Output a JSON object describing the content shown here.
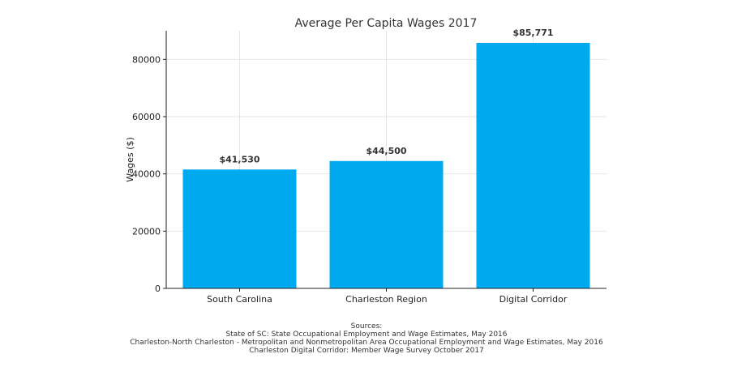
{
  "chart_data": {
    "type": "bar",
    "title": "Average Per Capita Wages 2017",
    "xlabel": "",
    "ylabel": "Wages ($)",
    "categories": [
      "South Carolina",
      "Charleston Region",
      "Digital Corridor"
    ],
    "values": [
      41530,
      44500,
      85771
    ],
    "data_labels": [
      "$41,530",
      "$44,500",
      "$85,771"
    ],
    "ylim": [
      0,
      90000
    ],
    "yticks": [
      0,
      20000,
      40000,
      60000,
      80000
    ],
    "ytick_labels": [
      "0",
      "20000",
      "40000",
      "60000",
      "80000"
    ],
    "grid": true,
    "bar_color": "#00aaee"
  },
  "sources": {
    "heading": "Sources:",
    "lines": [
      "State of SC: State Occupational Employment and Wage Estimates, May 2016",
      "Charleston-North Charleston - Metropolitan and Nonmetropolitan Area Occupational Employment and Wage Estimates, May 2016",
      "Charleston Digital Corridor: Member Wage Survey October 2017"
    ]
  }
}
